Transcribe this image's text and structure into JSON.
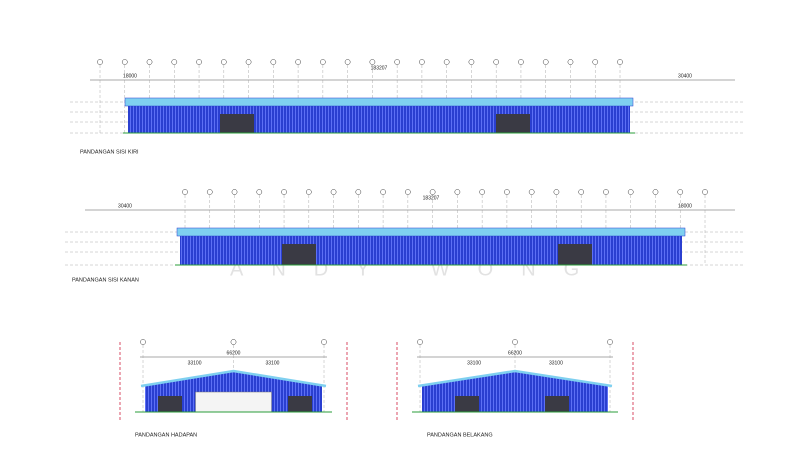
{
  "watermark": "ANDY WONG",
  "views": [
    {
      "label": "PANDANGAN SISI KIRI",
      "dimensions": [
        "18000",
        "183207",
        "30400"
      ]
    },
    {
      "label": "PANDANGAN SISI KANAN",
      "dimensions": [
        "30400",
        "183207",
        "18000"
      ]
    },
    {
      "label": "PANDANGAN HADAPAN",
      "dimensions": [
        "66200",
        "33100",
        "33100"
      ]
    },
    {
      "label": "PANDANGAN BELAKANG",
      "dimensions": [
        "66200",
        "33100",
        "33100"
      ]
    }
  ]
}
